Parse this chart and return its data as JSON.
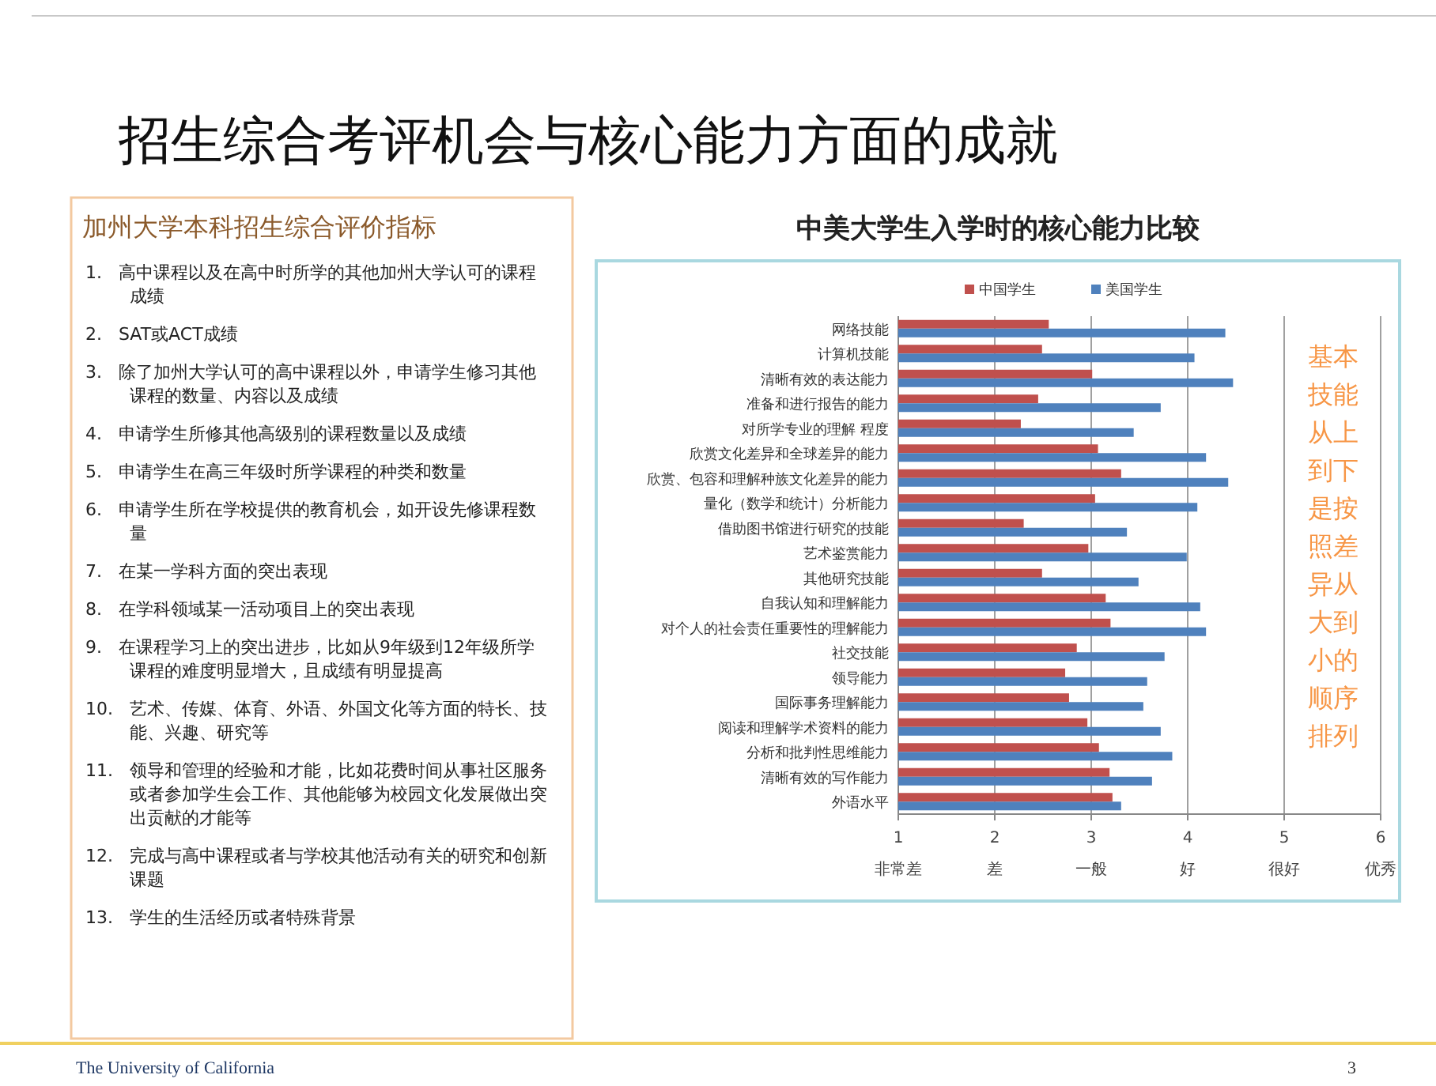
{
  "chart_data": [
    {
      "type": "other",
      "title": "招生综合考评机会与核心能力方面的成就",
      "annotations": [
        "The University of California",
        "3"
      ]
    },
    {
      "type": "other",
      "title": "加州大学本科招生综合评价指标",
      "annotations": [
        "1. 高中课程以及在高中时所学的其他加州大学认可的课程成绩",
        "2. SAT或ACT成绩",
        "3. 除了加州大学认可的高中课程以外，申请学生修习其他课程的数量、内容以及成绩",
        "4. 申请学生所修其他高级别的课程数量以及成绩",
        "5. 申请学生在高三年级时所学课程的种类和数量",
        "6. 申请学生所在学校提供的教育机会，如开设先修课程数量",
        "7. 在某一学科方面的突出表现",
        "8. 在学科领域某一活动项目上的突出表现",
        "9. 在课程学习上的突出进步，比如从9年级到12年级所学课程的难度明显增大，且成绩有明显提高",
        "10. 艺术、传媒、体育、外语、外国文化等方面的特长、技能、兴趣、研究等",
        "11. 领导和管理的经验和才能，比如花费时间从事社区服务或者参加学生会工作、其他能够为校园文化发展做出突出贡献的才能等",
        "12. 完成与高中课程或者与学校其他活动有关的研究和创新课题",
        "13. 学生的生活经历或者特殊背景"
      ]
    },
    {
      "type": "bar",
      "orientation": "horizontal",
      "title": "中美大学生入学时的核心能力比较",
      "categories": [
        "网络技能",
        "计算机技能",
        "清晰有效的表达能力",
        "准备和进行报告的能力",
        "对所学专业的理解 程度",
        "欣赏文化差异和全球差异的能力",
        "欣赏、包容和理解种族文化差异的能力",
        "量化（数学和统计）分析能力",
        "借助图书馆进行研究的技能",
        "艺术鉴赏能力",
        "其他研究技能",
        "自我认知和理解能力",
        "对个人的社会责任重要性的理解能力",
        "社交技能",
        "领导能力",
        "国际事务理解能力",
        "阅读和理解学术资料的能力",
        "分析和批判性思维能力",
        "清晰有效的写作能力",
        "外语水平"
      ],
      "series": [
        {
          "name": "中国学生",
          "color": "#c0504d",
          "values": [
            2.56,
            2.49,
            3.01,
            2.45,
            2.27,
            3.07,
            3.31,
            3.04,
            2.3,
            2.97,
            2.49,
            3.15,
            3.2,
            2.85,
            2.73,
            2.77,
            2.96,
            3.08,
            3.19,
            3.22
          ]
        },
        {
          "name": "美国学生",
          "color": "#4f81bd",
          "values": [
            4.39,
            4.07,
            4.47,
            3.72,
            3.44,
            4.19,
            4.42,
            4.1,
            3.37,
            3.99,
            3.49,
            4.13,
            4.19,
            3.76,
            3.58,
            3.54,
            3.72,
            3.84,
            3.63,
            3.31
          ]
        }
      ],
      "xlim": [
        1,
        6
      ],
      "xticks": [
        {
          "value": 1,
          "label": "1\n非常差"
        },
        {
          "value": 2,
          "label": "2\n差"
        },
        {
          "value": 3,
          "label": "3\n一般"
        },
        {
          "value": 4,
          "label": "4\n好"
        },
        {
          "value": 5,
          "label": "5\n很好"
        },
        {
          "value": 6,
          "label": "6\n优秀"
        }
      ],
      "grid": "x",
      "legend": "top",
      "annotations": [
        "基本技能从上到下是按照差异从大到小的顺序排列"
      ]
    }
  ]
}
